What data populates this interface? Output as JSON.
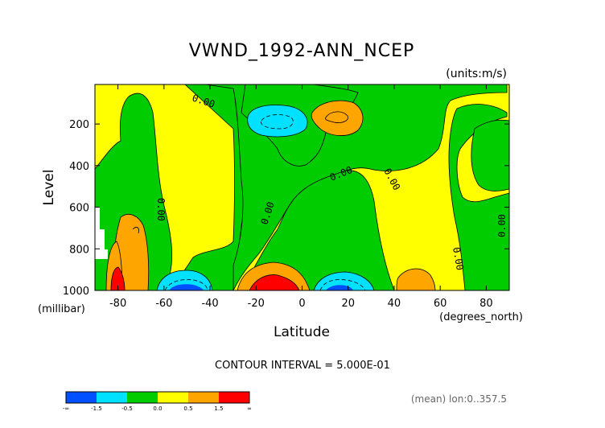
{
  "chart_data": {
    "type": "contour",
    "title": "VWND_1992-ANN_NCEP",
    "units_label": "(units:m/s)",
    "xlabel": "Latitude",
    "xunits": "(degrees_north)",
    "ylabel": "Level",
    "yunits": "(millibar)",
    "xlim": [
      -90,
      90
    ],
    "ylim": [
      1000,
      10
    ],
    "x_ticks": [
      -80,
      -60,
      -40,
      -20,
      0,
      20,
      40,
      60,
      80
    ],
    "y_ticks": [
      200,
      400,
      600,
      800,
      1000
    ],
    "contour_interval_text": "CONTOUR INTERVAL = 5.000E-01",
    "footer_text": "(mean) lon:0..357.5",
    "contour_labels": [
      "0.00",
      "0.00",
      "0.00",
      "0.00",
      "0.00",
      "0.00",
      "0.00"
    ],
    "colorbar": {
      "colors": [
        "#0050ff",
        "#00e0ff",
        "#00cc00",
        "#ffff00",
        "#ffa500",
        "#ff0000"
      ],
      "tick_labels": [
        "-∞",
        "-1.5",
        "-0.5",
        "0.0",
        "0.5",
        "1.5",
        "∞"
      ]
    },
    "colors": {
      "blue": "#0050ff",
      "cyan": "#00e0ff",
      "green": "#00cc00",
      "yellow": "#ffff00",
      "orange": "#ffa500",
      "red": "#ff0000"
    }
  }
}
